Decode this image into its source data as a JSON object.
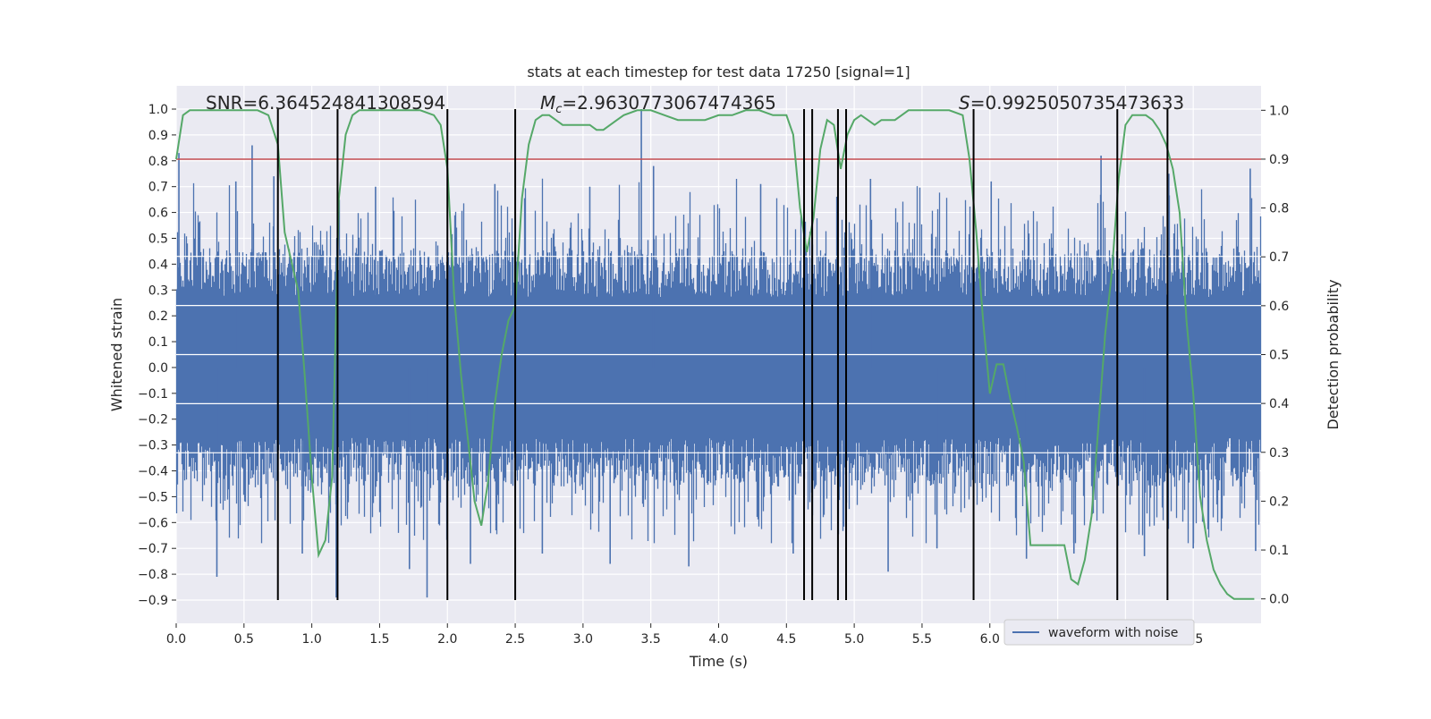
{
  "chart_data": {
    "type": "line",
    "title": "stats at each timestep for test data 17250 [signal=1]",
    "xlabel": "Time (s)",
    "ylabel": "Whitened strain",
    "y2label": "Detection probability",
    "xlim": [
      0.0,
      8.0
    ],
    "ylim": [
      -0.99,
      1.09
    ],
    "y2lim": [
      -0.05,
      1.05
    ],
    "xticks": [
      0.0,
      0.5,
      1.0,
      1.5,
      2.0,
      2.5,
      3.0,
      3.5,
      4.0,
      4.5,
      5.0,
      5.5,
      6.0,
      6.5,
      7.0,
      7.5
    ],
    "xtick_labels": [
      "0.0",
      "0.5",
      "1.0",
      "1.5",
      "2.0",
      "2.5",
      "3.0",
      "3.5",
      "4.0",
      "4.5",
      "5.0",
      "5.5",
      "6.0",
      "6.5",
      "7.0",
      "7.5"
    ],
    "yticks": [
      1.0,
      0.9,
      0.8,
      0.7,
      0.6,
      0.5,
      0.4,
      0.3,
      0.2,
      0.1,
      0.0,
      -0.1,
      -0.2,
      -0.3,
      -0.4,
      -0.5,
      -0.6,
      -0.7,
      -0.8,
      -0.9
    ],
    "ytick_labels": [
      "1.0",
      "0.9",
      "0.8",
      "0.7",
      "0.6",
      "0.5",
      "0.4",
      "0.3",
      "0.2",
      "0.1",
      "0.0",
      "−0.1",
      "−0.2",
      "−0.3",
      "−0.4",
      "−0.5",
      "−0.6",
      "−0.7",
      "−0.8",
      "−0.9"
    ],
    "y2ticks": [
      1.0,
      0.9,
      0.8,
      0.7,
      0.6,
      0.5,
      0.4,
      0.3,
      0.2,
      0.1,
      0.0
    ],
    "y2tick_labels": [
      "1.0",
      "0.9",
      "0.8",
      "0.7",
      "0.6",
      "0.5",
      "0.4",
      "0.3",
      "0.2",
      "0.1",
      "0.0"
    ],
    "grid": true,
    "legend": {
      "position": "lower-right",
      "label": "waveform with noise"
    },
    "annotations": {
      "snr": "SNR=6.364524841308594",
      "mc_prefix": "M",
      "mc_sub": "c",
      "mc_value": "=2.9630773067474365",
      "s_prefix": "S",
      "s_value": "=0.9925050735473633"
    },
    "threshold": {
      "axis": "y2",
      "value": 0.9,
      "color": "#c44e52"
    },
    "vertical_lines": [
      0.75,
      1.19,
      2.0,
      2.5,
      4.63,
      4.69,
      4.88,
      4.94,
      5.88,
      6.94,
      7.31
    ],
    "vertical_line_range": [
      -0.9,
      1.0
    ],
    "strain": {
      "name": "waveform with noise",
      "color": "#4c72b0",
      "core_envelope": 0.42,
      "spikes": [
        [
          0.02,
          0.83
        ],
        [
          0.3,
          -0.81
        ],
        [
          0.56,
          0.86
        ],
        [
          1.18,
          -0.89
        ],
        [
          1.85,
          -0.89
        ],
        [
          1.72,
          -0.78
        ],
        [
          1.47,
          0.7
        ],
        [
          0.72,
          0.74
        ],
        [
          2.35,
          0.71
        ],
        [
          2.7,
          -0.72
        ],
        [
          3.05,
          0.7
        ],
        [
          3.2,
          -0.76
        ],
        [
          3.43,
          1.0
        ],
        [
          3.52,
          0.78
        ],
        [
          3.78,
          -0.77
        ],
        [
          4.55,
          -0.72
        ],
        [
          5.12,
          0.73
        ],
        [
          5.25,
          -0.79
        ],
        [
          6.27,
          -0.74
        ],
        [
          6.82,
          0.82
        ],
        [
          7.14,
          -0.73
        ],
        [
          7.32,
          0.75
        ],
        [
          7.5,
          -0.7
        ],
        [
          7.92,
          0.77
        ],
        [
          7.96,
          -0.71
        ],
        [
          0.44,
          0.72
        ],
        [
          0.93,
          -0.72
        ],
        [
          2.17,
          -0.76
        ],
        [
          4.31,
          0.71
        ],
        [
          5.61,
          -0.7
        ],
        [
          6.01,
          0.72
        ],
        [
          6.62,
          -0.72
        ]
      ]
    },
    "probability": {
      "color": "#55a868",
      "x": [
        0.0,
        0.05,
        0.1,
        0.2,
        0.3,
        0.4,
        0.5,
        0.6,
        0.68,
        0.75,
        0.8,
        0.9,
        0.95,
        1.0,
        1.05,
        1.1,
        1.15,
        1.2,
        1.25,
        1.3,
        1.35,
        1.4,
        1.5,
        1.6,
        1.7,
        1.8,
        1.9,
        1.95,
        2.0,
        2.05,
        2.1,
        2.2,
        2.25,
        2.3,
        2.35,
        2.4,
        2.45,
        2.5,
        2.55,
        2.6,
        2.65,
        2.7,
        2.75,
        2.8,
        2.85,
        2.9,
        2.95,
        3.0,
        3.05,
        3.1,
        3.15,
        3.2,
        3.25,
        3.3,
        3.4,
        3.5,
        3.6,
        3.7,
        3.8,
        3.9,
        4.0,
        4.1,
        4.2,
        4.3,
        4.4,
        4.5,
        4.55,
        4.6,
        4.65,
        4.7,
        4.75,
        4.8,
        4.85,
        4.9,
        4.95,
        5.0,
        5.05,
        5.1,
        5.15,
        5.2,
        5.3,
        5.35,
        5.4,
        5.45,
        5.5,
        5.6,
        5.7,
        5.8,
        5.85,
        5.9,
        5.95,
        6.0,
        6.05,
        6.1,
        6.15,
        6.2,
        6.25,
        6.3,
        6.35,
        6.4,
        6.45,
        6.5,
        6.55,
        6.6,
        6.65,
        6.7,
        6.75,
        6.8,
        6.85,
        6.9,
        6.95,
        7.0,
        7.05,
        7.1,
        7.15,
        7.2,
        7.25,
        7.3,
        7.35,
        7.4,
        7.45,
        7.5,
        7.55,
        7.6,
        7.65,
        7.7,
        7.75,
        7.8,
        7.85,
        7.9,
        7.95
      ],
      "y": [
        0.9,
        0.99,
        1.0,
        1.0,
        1.0,
        1.0,
        1.0,
        1.0,
        0.99,
        0.93,
        0.75,
        0.63,
        0.45,
        0.25,
        0.09,
        0.12,
        0.25,
        0.82,
        0.95,
        0.99,
        1.0,
        1.0,
        1.0,
        1.0,
        1.0,
        1.0,
        0.99,
        0.97,
        0.88,
        0.62,
        0.46,
        0.2,
        0.15,
        0.24,
        0.4,
        0.5,
        0.57,
        0.6,
        0.82,
        0.93,
        0.98,
        0.99,
        0.99,
        0.98,
        0.97,
        0.97,
        0.97,
        0.97,
        0.97,
        0.96,
        0.96,
        0.97,
        0.98,
        0.99,
        1.0,
        1.0,
        0.99,
        0.98,
        0.98,
        0.98,
        0.99,
        0.99,
        1.0,
        1.0,
        0.99,
        0.99,
        0.95,
        0.8,
        0.71,
        0.78,
        0.92,
        0.98,
        0.97,
        0.88,
        0.95,
        0.98,
        0.99,
        0.98,
        0.97,
        0.98,
        0.98,
        0.99,
        1.0,
        1.0,
        1.0,
        1.0,
        1.0,
        0.99,
        0.9,
        0.75,
        0.57,
        0.42,
        0.48,
        0.48,
        0.41,
        0.35,
        0.28,
        0.11,
        0.11,
        0.11,
        0.11,
        0.11,
        0.11,
        0.04,
        0.03,
        0.08,
        0.17,
        0.35,
        0.54,
        0.67,
        0.86,
        0.97,
        0.99,
        0.99,
        0.99,
        0.98,
        0.96,
        0.93,
        0.88,
        0.79,
        0.57,
        0.42,
        0.21,
        0.12,
        0.06,
        0.03,
        0.01,
        0.0,
        0.0,
        0.0,
        0.0
      ]
    }
  }
}
